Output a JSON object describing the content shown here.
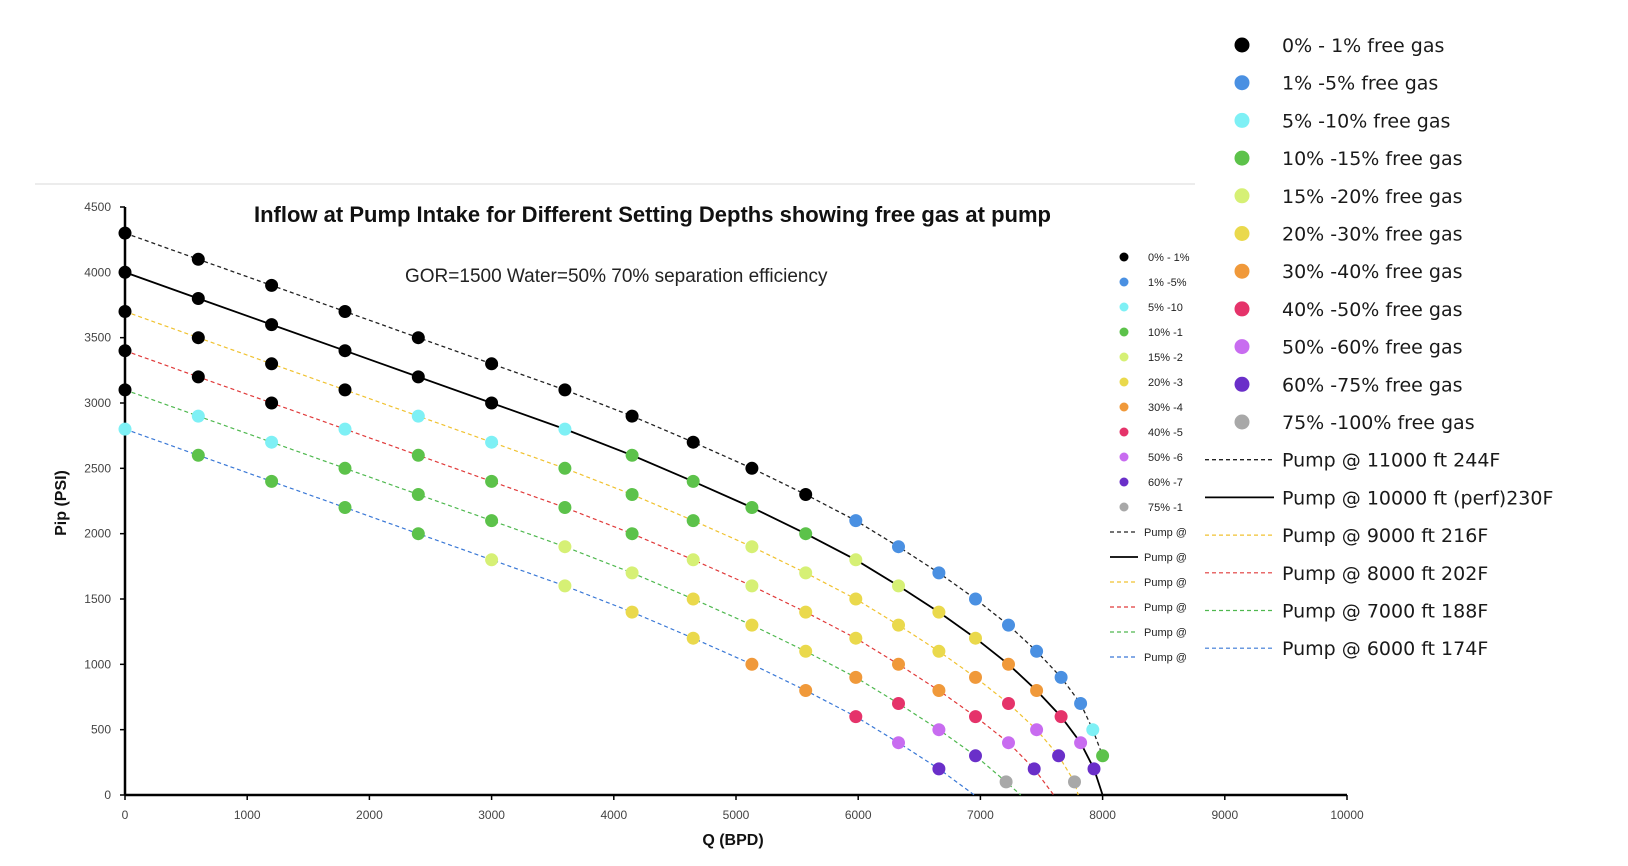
{
  "chart_data": {
    "type": "scatter",
    "title": "Inflow at Pump Intake for Different Setting Depths showing free gas at pump",
    "subtitle": "GOR=1500 Water=50% 70% separation efficiency",
    "xlabel": "Q (BPD)",
    "ylabel": "Pip (PSI)",
    "xlim": [
      0,
      10000
    ],
    "ylim": [
      0,
      4500
    ],
    "xticks": [
      0,
      1000,
      2000,
      3000,
      4000,
      5000,
      6000,
      7000,
      8000,
      9000,
      10000
    ],
    "yticks": [
      0,
      500,
      1000,
      1500,
      2000,
      2500,
      3000,
      3500,
      4000,
      4500
    ],
    "point_categories": [
      {
        "key": "g0",
        "name": "0% - 1% free gas",
        "short": "0% - 1%",
        "color": "#000000"
      },
      {
        "key": "g1",
        "name": "1% -5% free gas",
        "short": "1% -5%",
        "color": "#4a90e2"
      },
      {
        "key": "g2",
        "name": "5% -10% free gas",
        "short": "5% -10",
        "color": "#7ef0f5"
      },
      {
        "key": "g3",
        "name": "10% -15% free gas",
        "short": "10% -1",
        "color": "#5cc24a"
      },
      {
        "key": "g4",
        "name": "15% -20% free gas",
        "short": "15% -2",
        "color": "#d6f075"
      },
      {
        "key": "g5",
        "name": "20% -30% free gas",
        "short": "20% -3",
        "color": "#ead94c"
      },
      {
        "key": "g6",
        "name": "30% -40% free gas",
        "short": "30% -4",
        "color": "#f0993a"
      },
      {
        "key": "g7",
        "name": "40% -50% free gas",
        "short": "40% -5",
        "color": "#e5336a"
      },
      {
        "key": "g8",
        "name": "50% -60% free gas",
        "short": "50% -6",
        "color": "#c86cf0"
      },
      {
        "key": "g9",
        "name": "60% -75% free gas",
        "short": "60% -7",
        "color": "#6a2fc9"
      },
      {
        "key": "g10",
        "name": "75% -100% free gas",
        "short": "75% -1",
        "color": "#a8a8a8"
      }
    ],
    "curves": [
      {
        "name": "Pump @ 11000 ft 244F",
        "short": "Pump @",
        "color": "#222222",
        "dash": "4,3",
        "width": 1.3,
        "x": [
          0,
          600,
          1200,
          1800,
          2400,
          3000,
          3600,
          4150,
          4650,
          5130,
          5570,
          5980,
          6330,
          6660,
          6960,
          7230,
          7460,
          7660,
          7820,
          7920,
          8000
        ],
        "y": [
          4300,
          4100,
          3900,
          3700,
          3500,
          3300,
          3100,
          2900,
          2700,
          2500,
          2300,
          2100,
          1900,
          1700,
          1500,
          1300,
          1100,
          900,
          700,
          500,
          300
        ]
      },
      {
        "name": "Pump @ 10000 ft (perf)230F",
        "short": "Pump @",
        "color": "#000000",
        "dash": "",
        "width": 1.8,
        "x": [
          0,
          600,
          1200,
          1800,
          2400,
          3000,
          3600,
          4150,
          4650,
          5130,
          5570,
          5980,
          6330,
          6660,
          6960,
          7230,
          7460,
          7660,
          7820,
          7930,
          8000
        ],
        "y": [
          4000,
          3800,
          3600,
          3400,
          3200,
          3000,
          2800,
          2600,
          2400,
          2200,
          2000,
          1800,
          1600,
          1400,
          1200,
          1000,
          800,
          600,
          400,
          200,
          0
        ]
      },
      {
        "name": "Pump @ 9000 ft 216F",
        "short": "Pump @",
        "color": "#f0c230",
        "dash": "4,3",
        "width": 1.2,
        "x": [
          0,
          600,
          1200,
          1800,
          2400,
          3000,
          3600,
          4150,
          4650,
          5130,
          5570,
          5980,
          6330,
          6660,
          6960,
          7230,
          7460,
          7640,
          7770,
          7800
        ],
        "y": [
          3700,
          3500,
          3300,
          3100,
          2900,
          2700,
          2500,
          2300,
          2100,
          1900,
          1700,
          1500,
          1300,
          1100,
          900,
          700,
          500,
          300,
          100,
          0
        ]
      },
      {
        "name": "Pump @ 8000 ft 202F",
        "short": "Pump @",
        "color": "#e03a3a",
        "dash": "4,3",
        "width": 1.2,
        "x": [
          0,
          600,
          1200,
          1800,
          2400,
          3000,
          3600,
          4150,
          4650,
          5130,
          5570,
          5980,
          6330,
          6660,
          6960,
          7230,
          7440,
          7600
        ],
        "y": [
          3400,
          3200,
          3000,
          2800,
          2600,
          2400,
          2200,
          2000,
          1800,
          1600,
          1400,
          1200,
          1000,
          800,
          600,
          400,
          200,
          0
        ]
      },
      {
        "name": "Pump @ 7000 ft 188F",
        "short": "Pump @",
        "color": "#4fb84f",
        "dash": "4,3",
        "width": 1.2,
        "x": [
          0,
          600,
          1200,
          1800,
          2400,
          3000,
          3600,
          4150,
          4650,
          5130,
          5570,
          5980,
          6330,
          6660,
          6960,
          7210,
          7330
        ],
        "y": [
          3100,
          2900,
          2700,
          2500,
          2300,
          2100,
          1900,
          1700,
          1500,
          1300,
          1100,
          900,
          700,
          500,
          300,
          100,
          0
        ]
      },
      {
        "name": "Pump @ 6000 ft 174F",
        "short": "Pump @",
        "color": "#3a78d6",
        "dash": "4,3",
        "width": 1.2,
        "x": [
          0,
          600,
          1200,
          1800,
          2400,
          3000,
          3600,
          4150,
          4650,
          5130,
          5570,
          5980,
          6330,
          6660,
          6950
        ],
        "y": [
          2800,
          2600,
          2400,
          2200,
          2000,
          1800,
          1600,
          1400,
          1200,
          1000,
          800,
          600,
          400,
          200,
          0
        ]
      }
    ],
    "points": [
      {
        "x": 0,
        "y": 4300,
        "c": "g0"
      },
      {
        "x": 600,
        "y": 4100,
        "c": "g0"
      },
      {
        "x": 1200,
        "y": 3900,
        "c": "g0"
      },
      {
        "x": 1800,
        "y": 3700,
        "c": "g0"
      },
      {
        "x": 2400,
        "y": 3500,
        "c": "g0"
      },
      {
        "x": 3000,
        "y": 3300,
        "c": "g0"
      },
      {
        "x": 3600,
        "y": 3100,
        "c": "g0"
      },
      {
        "x": 4150,
        "y": 2900,
        "c": "g0"
      },
      {
        "x": 4650,
        "y": 2700,
        "c": "g0"
      },
      {
        "x": 5130,
        "y": 2500,
        "c": "g0"
      },
      {
        "x": 5570,
        "y": 2300,
        "c": "g0"
      },
      {
        "x": 5980,
        "y": 2100,
        "c": "g1"
      },
      {
        "x": 6330,
        "y": 1900,
        "c": "g1"
      },
      {
        "x": 6660,
        "y": 1700,
        "c": "g1"
      },
      {
        "x": 6960,
        "y": 1500,
        "c": "g1"
      },
      {
        "x": 7230,
        "y": 1300,
        "c": "g1"
      },
      {
        "x": 7460,
        "y": 1100,
        "c": "g1"
      },
      {
        "x": 7660,
        "y": 900,
        "c": "g1"
      },
      {
        "x": 7820,
        "y": 700,
        "c": "g1"
      },
      {
        "x": 7920,
        "y": 500,
        "c": "g2"
      },
      {
        "x": 8000,
        "y": 300,
        "c": "g3"
      },
      {
        "x": 0,
        "y": 4000,
        "c": "g0"
      },
      {
        "x": 600,
        "y": 3800,
        "c": "g0"
      },
      {
        "x": 1200,
        "y": 3600,
        "c": "g0"
      },
      {
        "x": 1800,
        "y": 3400,
        "c": "g0"
      },
      {
        "x": 2400,
        "y": 3200,
        "c": "g0"
      },
      {
        "x": 3000,
        "y": 3000,
        "c": "g0"
      },
      {
        "x": 3600,
        "y": 2800,
        "c": "g2"
      },
      {
        "x": 4150,
        "y": 2600,
        "c": "g3"
      },
      {
        "x": 4650,
        "y": 2400,
        "c": "g3"
      },
      {
        "x": 5130,
        "y": 2200,
        "c": "g3"
      },
      {
        "x": 5570,
        "y": 2000,
        "c": "g3"
      },
      {
        "x": 5980,
        "y": 1800,
        "c": "g4"
      },
      {
        "x": 6330,
        "y": 1600,
        "c": "g4"
      },
      {
        "x": 6660,
        "y": 1400,
        "c": "g5"
      },
      {
        "x": 6960,
        "y": 1200,
        "c": "g5"
      },
      {
        "x": 7230,
        "y": 1000,
        "c": "g6"
      },
      {
        "x": 7460,
        "y": 800,
        "c": "g6"
      },
      {
        "x": 7660,
        "y": 600,
        "c": "g7"
      },
      {
        "x": 7820,
        "y": 400,
        "c": "g8"
      },
      {
        "x": 7930,
        "y": 200,
        "c": "g9"
      },
      {
        "x": 0,
        "y": 3700,
        "c": "g0"
      },
      {
        "x": 600,
        "y": 3500,
        "c": "g0"
      },
      {
        "x": 1200,
        "y": 3300,
        "c": "g0"
      },
      {
        "x": 1800,
        "y": 3100,
        "c": "g0"
      },
      {
        "x": 2400,
        "y": 2900,
        "c": "g2"
      },
      {
        "x": 3000,
        "y": 2700,
        "c": "g2"
      },
      {
        "x": 3600,
        "y": 2500,
        "c": "g3"
      },
      {
        "x": 4150,
        "y": 2300,
        "c": "g3"
      },
      {
        "x": 4650,
        "y": 2100,
        "c": "g3"
      },
      {
        "x": 5130,
        "y": 1900,
        "c": "g4"
      },
      {
        "x": 5570,
        "y": 1700,
        "c": "g4"
      },
      {
        "x": 5980,
        "y": 1500,
        "c": "g5"
      },
      {
        "x": 6330,
        "y": 1300,
        "c": "g5"
      },
      {
        "x": 6660,
        "y": 1100,
        "c": "g5"
      },
      {
        "x": 6960,
        "y": 900,
        "c": "g6"
      },
      {
        "x": 7230,
        "y": 700,
        "c": "g7"
      },
      {
        "x": 7460,
        "y": 500,
        "c": "g8"
      },
      {
        "x": 7640,
        "y": 300,
        "c": "g9"
      },
      {
        "x": 7770,
        "y": 100,
        "c": "g10"
      },
      {
        "x": 0,
        "y": 3400,
        "c": "g0"
      },
      {
        "x": 600,
        "y": 3200,
        "c": "g0"
      },
      {
        "x": 1200,
        "y": 3000,
        "c": "g0"
      },
      {
        "x": 1800,
        "y": 2800,
        "c": "g2"
      },
      {
        "x": 2400,
        "y": 2600,
        "c": "g3"
      },
      {
        "x": 3000,
        "y": 2400,
        "c": "g3"
      },
      {
        "x": 3600,
        "y": 2200,
        "c": "g3"
      },
      {
        "x": 4150,
        "y": 2000,
        "c": "g3"
      },
      {
        "x": 4650,
        "y": 1800,
        "c": "g4"
      },
      {
        "x": 5130,
        "y": 1600,
        "c": "g4"
      },
      {
        "x": 5570,
        "y": 1400,
        "c": "g5"
      },
      {
        "x": 5980,
        "y": 1200,
        "c": "g5"
      },
      {
        "x": 6330,
        "y": 1000,
        "c": "g6"
      },
      {
        "x": 6660,
        "y": 800,
        "c": "g6"
      },
      {
        "x": 6960,
        "y": 600,
        "c": "g7"
      },
      {
        "x": 7230,
        "y": 400,
        "c": "g8"
      },
      {
        "x": 7440,
        "y": 200,
        "c": "g9"
      },
      {
        "x": 0,
        "y": 3100,
        "c": "g0"
      },
      {
        "x": 600,
        "y": 2900,
        "c": "g2"
      },
      {
        "x": 1200,
        "y": 2700,
        "c": "g2"
      },
      {
        "x": 1800,
        "y": 2500,
        "c": "g3"
      },
      {
        "x": 2400,
        "y": 2300,
        "c": "g3"
      },
      {
        "x": 3000,
        "y": 2100,
        "c": "g3"
      },
      {
        "x": 3600,
        "y": 1900,
        "c": "g4"
      },
      {
        "x": 4150,
        "y": 1700,
        "c": "g4"
      },
      {
        "x": 4650,
        "y": 1500,
        "c": "g5"
      },
      {
        "x": 5130,
        "y": 1300,
        "c": "g5"
      },
      {
        "x": 5570,
        "y": 1100,
        "c": "g5"
      },
      {
        "x": 5980,
        "y": 900,
        "c": "g6"
      },
      {
        "x": 6330,
        "y": 700,
        "c": "g7"
      },
      {
        "x": 6660,
        "y": 500,
        "c": "g8"
      },
      {
        "x": 6960,
        "y": 300,
        "c": "g9"
      },
      {
        "x": 7210,
        "y": 100,
        "c": "g10"
      },
      {
        "x": 0,
        "y": 2800,
        "c": "g2"
      },
      {
        "x": 600,
        "y": 2600,
        "c": "g3"
      },
      {
        "x": 1200,
        "y": 2400,
        "c": "g3"
      },
      {
        "x": 1800,
        "y": 2200,
        "c": "g3"
      },
      {
        "x": 2400,
        "y": 2000,
        "c": "g3"
      },
      {
        "x": 3000,
        "y": 1800,
        "c": "g4"
      },
      {
        "x": 3600,
        "y": 1600,
        "c": "g4"
      },
      {
        "x": 4150,
        "y": 1400,
        "c": "g5"
      },
      {
        "x": 4650,
        "y": 1200,
        "c": "g5"
      },
      {
        "x": 5130,
        "y": 1000,
        "c": "g6"
      },
      {
        "x": 5570,
        "y": 800,
        "c": "g6"
      },
      {
        "x": 5980,
        "y": 600,
        "c": "g7"
      },
      {
        "x": 6330,
        "y": 400,
        "c": "g8"
      },
      {
        "x": 6660,
        "y": 200,
        "c": "g9"
      }
    ]
  }
}
